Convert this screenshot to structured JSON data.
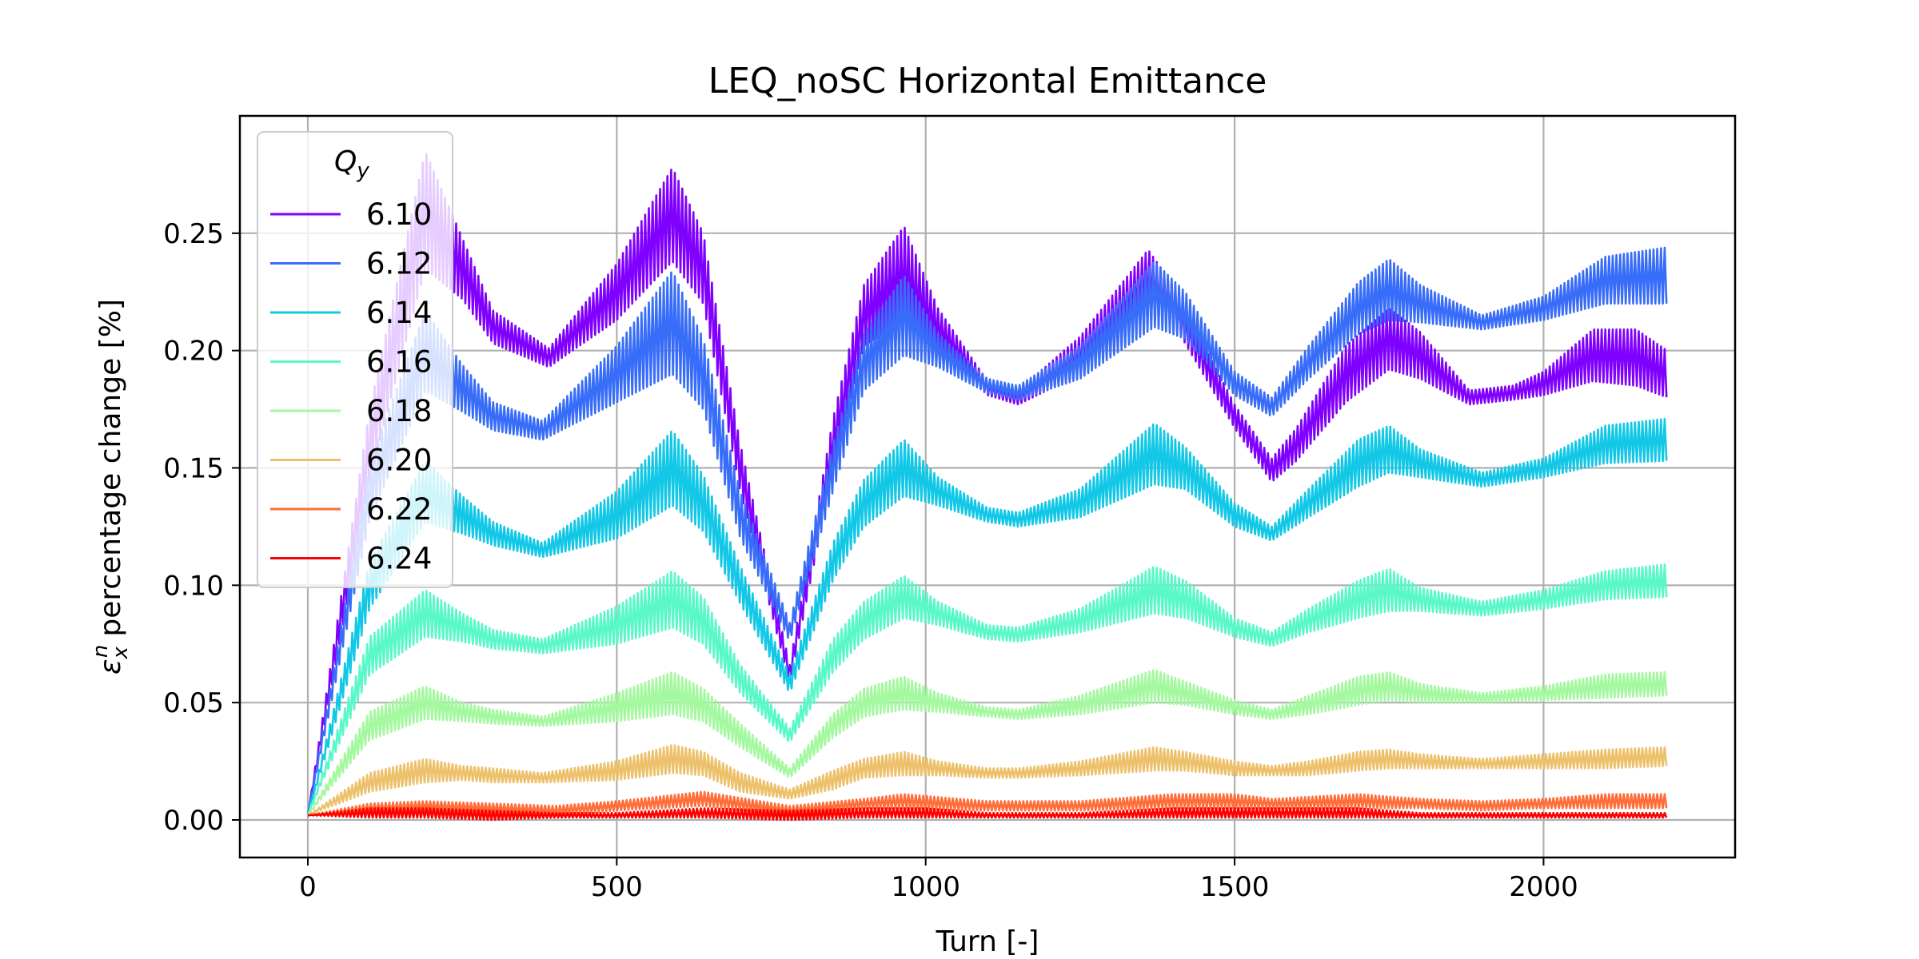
{
  "chart_data": {
    "type": "line",
    "title": "LEQ_noSC Horizontal Emittance",
    "xlabel": "Turn [-]",
    "ylabel": "percentage change [%]",
    "ylabel_symbol": "ε",
    "ylabel_sub": "x",
    "ylabel_sup": "n",
    "xlim": [
      -110,
      2310
    ],
    "ylim": [
      -0.016,
      0.3
    ],
    "xticks": [
      0,
      500,
      1000,
      1500,
      2000
    ],
    "xtick_labels": [
      "0",
      "500",
      "1000",
      "1500",
      "2000"
    ],
    "yticks": [
      0.0,
      0.05,
      0.1,
      0.15,
      0.2,
      0.25
    ],
    "ytick_labels": [
      "0.00",
      "0.05",
      "0.10",
      "0.15",
      "0.20",
      "0.25"
    ],
    "grid": true,
    "legend": {
      "title": "Q",
      "title_sub": "y",
      "placement": "top-left"
    },
    "series": [
      {
        "name": "6.10",
        "color": "#8000ff",
        "x": [
          0,
          100,
          190,
          250,
          300,
          390,
          500,
          590,
          640,
          700,
          780,
          850,
          900,
          965,
          1020,
          1100,
          1150,
          1250,
          1360,
          1400,
          1500,
          1560,
          1600,
          1680,
          1750,
          1800,
          1880,
          1950,
          2000,
          2080,
          2150,
          2200
        ],
        "center": [
          0.002,
          0.16,
          0.26,
          0.235,
          0.21,
          0.197,
          0.225,
          0.258,
          0.235,
          0.15,
          0.062,
          0.16,
          0.215,
          0.233,
          0.21,
          0.184,
          0.18,
          0.198,
          0.23,
          0.22,
          0.172,
          0.149,
          0.16,
          0.19,
          0.205,
          0.198,
          0.18,
          0.182,
          0.186,
          0.198,
          0.197,
          0.19
        ],
        "amplitude": [
          0.0,
          0.015,
          0.025,
          0.013,
          0.007,
          0.004,
          0.012,
          0.02,
          0.015,
          0.01,
          0.004,
          0.011,
          0.013,
          0.02,
          0.008,
          0.003,
          0.003,
          0.008,
          0.013,
          0.008,
          0.005,
          0.005,
          0.007,
          0.012,
          0.013,
          0.01,
          0.003,
          0.003,
          0.005,
          0.011,
          0.012,
          0.01
        ]
      },
      {
        "name": "6.12",
        "color": "#386df9",
        "x": [
          0,
          100,
          190,
          250,
          300,
          380,
          500,
          590,
          640,
          700,
          780,
          850,
          900,
          965,
          1020,
          1100,
          1150,
          1250,
          1370,
          1420,
          1500,
          1560,
          1620,
          1700,
          1750,
          1800,
          1900,
          2000,
          2100,
          2200
        ],
        "center": [
          0.002,
          0.14,
          0.2,
          0.184,
          0.172,
          0.166,
          0.19,
          0.212,
          0.19,
          0.13,
          0.08,
          0.15,
          0.195,
          0.215,
          0.2,
          0.185,
          0.182,
          0.195,
          0.224,
          0.215,
          0.186,
          0.176,
          0.195,
          0.218,
          0.226,
          0.22,
          0.212,
          0.218,
          0.23,
          0.232
        ],
        "amplitude": [
          0.0,
          0.012,
          0.017,
          0.01,
          0.006,
          0.004,
          0.012,
          0.022,
          0.015,
          0.01,
          0.004,
          0.01,
          0.012,
          0.017,
          0.007,
          0.003,
          0.003,
          0.007,
          0.014,
          0.01,
          0.005,
          0.004,
          0.007,
          0.011,
          0.013,
          0.008,
          0.003,
          0.005,
          0.01,
          0.012
        ]
      },
      {
        "name": "6.14",
        "color": "#12c8e6",
        "x": [
          0,
          100,
          190,
          250,
          300,
          380,
          500,
          590,
          640,
          700,
          780,
          850,
          900,
          965,
          1020,
          1100,
          1150,
          1250,
          1370,
          1420,
          1500,
          1560,
          1620,
          1700,
          1750,
          1800,
          1900,
          2000,
          2100,
          2200
        ],
        "center": [
          0.002,
          0.1,
          0.14,
          0.13,
          0.122,
          0.115,
          0.13,
          0.15,
          0.135,
          0.1,
          0.058,
          0.11,
          0.135,
          0.15,
          0.14,
          0.13,
          0.128,
          0.135,
          0.156,
          0.15,
          0.13,
          0.122,
          0.135,
          0.152,
          0.158,
          0.152,
          0.145,
          0.15,
          0.16,
          0.162
        ],
        "amplitude": [
          0.0,
          0.01,
          0.013,
          0.008,
          0.005,
          0.003,
          0.01,
          0.016,
          0.012,
          0.008,
          0.004,
          0.008,
          0.01,
          0.012,
          0.006,
          0.003,
          0.003,
          0.006,
          0.013,
          0.009,
          0.005,
          0.003,
          0.006,
          0.01,
          0.01,
          0.006,
          0.003,
          0.004,
          0.008,
          0.009
        ]
      },
      {
        "name": "6.16",
        "color": "#5af8c8",
        "x": [
          0,
          100,
          190,
          250,
          300,
          380,
          500,
          590,
          640,
          700,
          780,
          850,
          900,
          965,
          1020,
          1100,
          1150,
          1250,
          1370,
          1420,
          1500,
          1560,
          1620,
          1700,
          1750,
          1800,
          1900,
          2000,
          2100,
          2200
        ],
        "center": [
          0.002,
          0.07,
          0.088,
          0.082,
          0.077,
          0.074,
          0.083,
          0.094,
          0.085,
          0.06,
          0.036,
          0.07,
          0.085,
          0.095,
          0.088,
          0.08,
          0.079,
          0.085,
          0.098,
          0.094,
          0.082,
          0.077,
          0.085,
          0.094,
          0.098,
          0.094,
          0.09,
          0.094,
          0.1,
          0.102
        ],
        "amplitude": [
          0.0,
          0.008,
          0.01,
          0.006,
          0.004,
          0.003,
          0.008,
          0.012,
          0.01,
          0.006,
          0.003,
          0.007,
          0.008,
          0.009,
          0.005,
          0.003,
          0.003,
          0.005,
          0.01,
          0.008,
          0.004,
          0.003,
          0.005,
          0.008,
          0.009,
          0.005,
          0.003,
          0.004,
          0.006,
          0.007
        ]
      },
      {
        "name": "6.18",
        "color": "#a4f89f",
        "x": [
          0,
          100,
          190,
          250,
          300,
          380,
          500,
          590,
          640,
          700,
          780,
          850,
          900,
          965,
          1020,
          1100,
          1150,
          1250,
          1370,
          1420,
          1500,
          1560,
          1620,
          1700,
          1750,
          1800,
          1900,
          2000,
          2100,
          2200
        ],
        "center": [
          0.002,
          0.04,
          0.05,
          0.046,
          0.044,
          0.042,
          0.048,
          0.054,
          0.049,
          0.036,
          0.02,
          0.04,
          0.05,
          0.054,
          0.05,
          0.046,
          0.045,
          0.049,
          0.057,
          0.054,
          0.048,
          0.045,
          0.049,
          0.055,
          0.057,
          0.054,
          0.052,
          0.054,
          0.057,
          0.058
        ],
        "amplitude": [
          0.0,
          0.006,
          0.007,
          0.004,
          0.003,
          0.002,
          0.006,
          0.009,
          0.007,
          0.005,
          0.002,
          0.005,
          0.006,
          0.007,
          0.004,
          0.002,
          0.002,
          0.004,
          0.007,
          0.005,
          0.003,
          0.002,
          0.004,
          0.006,
          0.006,
          0.004,
          0.002,
          0.003,
          0.005,
          0.005
        ]
      },
      {
        "name": "6.20",
        "color": "#edc16b",
        "x": [
          0,
          100,
          190,
          250,
          300,
          380,
          500,
          590,
          640,
          700,
          780,
          850,
          900,
          965,
          1020,
          1100,
          1150,
          1250,
          1370,
          1420,
          1500,
          1560,
          1620,
          1700,
          1750,
          1800,
          1900,
          2000,
          2100,
          2200
        ],
        "center": [
          0.002,
          0.016,
          0.021,
          0.02,
          0.019,
          0.018,
          0.021,
          0.026,
          0.024,
          0.016,
          0.011,
          0.017,
          0.022,
          0.024,
          0.022,
          0.02,
          0.02,
          0.022,
          0.026,
          0.025,
          0.022,
          0.021,
          0.022,
          0.025,
          0.026,
          0.025,
          0.024,
          0.025,
          0.026,
          0.027
        ],
        "amplitude": [
          0.0,
          0.004,
          0.005,
          0.003,
          0.003,
          0.002,
          0.004,
          0.006,
          0.005,
          0.004,
          0.002,
          0.004,
          0.004,
          0.005,
          0.003,
          0.002,
          0.002,
          0.003,
          0.005,
          0.004,
          0.003,
          0.002,
          0.003,
          0.004,
          0.004,
          0.003,
          0.002,
          0.003,
          0.004,
          0.004
        ]
      },
      {
        "name": "6.22",
        "color": "#ff6e3a",
        "x": [
          0,
          100,
          190,
          300,
          400,
          500,
          640,
          780,
          900,
          965,
          1100,
          1250,
          1400,
          1500,
          1560,
          1700,
          1800,
          1900,
          2000,
          2100,
          2200
        ],
        "center": [
          0.002,
          0.005,
          0.006,
          0.005,
          0.004,
          0.006,
          0.009,
          0.004,
          0.007,
          0.008,
          0.006,
          0.006,
          0.008,
          0.008,
          0.007,
          0.008,
          0.007,
          0.006,
          0.007,
          0.008,
          0.008
        ],
        "amplitude": [
          0.0,
          0.002,
          0.002,
          0.002,
          0.002,
          0.002,
          0.003,
          0.002,
          0.002,
          0.003,
          0.002,
          0.002,
          0.003,
          0.003,
          0.002,
          0.003,
          0.002,
          0.002,
          0.002,
          0.003,
          0.003
        ]
      },
      {
        "name": "6.24",
        "color": "#ff0000",
        "x": [
          0,
          100,
          190,
          300,
          400,
          500,
          640,
          780,
          900,
          1000,
          1100,
          1250,
          1400,
          1500,
          1600,
          1700,
          1800,
          1900,
          2000,
          2100,
          2200
        ],
        "center": [
          0.002,
          0.003,
          0.003,
          0.002,
          0.002,
          0.002,
          0.003,
          0.002,
          0.003,
          0.003,
          0.002,
          0.002,
          0.003,
          0.003,
          0.003,
          0.003,
          0.002,
          0.002,
          0.002,
          0.002,
          0.002
        ],
        "amplitude": [
          0.0,
          0.002,
          0.002,
          0.002,
          0.001,
          0.001,
          0.002,
          0.002,
          0.002,
          0.002,
          0.001,
          0.001,
          0.002,
          0.002,
          0.002,
          0.002,
          0.001,
          0.001,
          0.001,
          0.001,
          0.001
        ]
      }
    ]
  }
}
